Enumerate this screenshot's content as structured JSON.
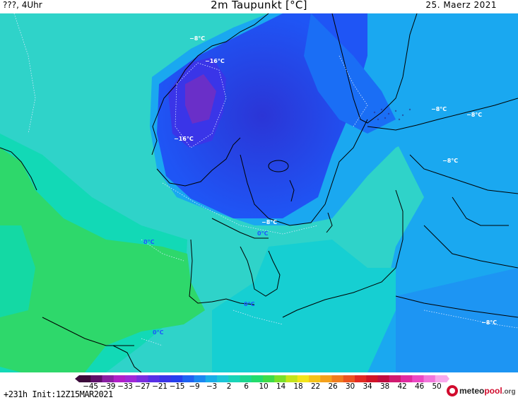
{
  "header": {
    "location": "???, 4Uhr",
    "title": "2m Taupunkt [°C]",
    "date": "25. Maerz 2021"
  },
  "map": {
    "isotherm_labels": [
      {
        "text": "-8°C",
        "style": "light"
      },
      {
        "text": "-16°C",
        "style": "light"
      },
      {
        "text": "-16°C",
        "style": "light"
      },
      {
        "text": "-8°C",
        "style": "light"
      },
      {
        "text": "-8°C",
        "style": "light"
      },
      {
        "text": "-8°C",
        "style": "light"
      },
      {
        "text": "-8°C",
        "style": "light"
      },
      {
        "text": "-8°C",
        "style": "light"
      },
      {
        "text": "0°C",
        "style": "dark"
      },
      {
        "text": "0°C",
        "style": "dark"
      },
      {
        "text": "0°C",
        "style": "dark"
      },
      {
        "text": "0°C",
        "style": "dark"
      }
    ],
    "colors": {
      "ocean": "#2fd3c9",
      "near_zero": "#12d9b6",
      "warm_land": "#2ed86b",
      "cold": "#1aa8f0",
      "very_cold": "#1f55f5",
      "deep_cold": "#2b35d6",
      "extreme_cold": "#6a2fc8",
      "coastline": "#000000"
    }
  },
  "colorbar": {
    "ticks": [
      "-45",
      "-39",
      "-33",
      "-27",
      "-21",
      "-15",
      "-9",
      "-3",
      "2",
      "6",
      "10",
      "14",
      "18",
      "22",
      "26",
      "30",
      "34",
      "38",
      "42",
      "46",
      "50"
    ],
    "colors": [
      "#3b0a3a",
      "#5e0f6a",
      "#8a1fa3",
      "#b020c8",
      "#a028d8",
      "#7a2ee0",
      "#5830e6",
      "#3a35e8",
      "#2540ee",
      "#1e62f2",
      "#1a88f2",
      "#19aee8",
      "#1cc6d8",
      "#18d4b8",
      "#1cd890",
      "#22dc6c",
      "#3edc48",
      "#7ae02a",
      "#c4e41c",
      "#f2e41c",
      "#f5c21a",
      "#f4a01c",
      "#f07c1e",
      "#ec5420",
      "#e22a22",
      "#d01428",
      "#c00c40",
      "#d01a70",
      "#e02aa0",
      "#ec48c4",
      "#f276dc",
      "#f8a8ec"
    ]
  },
  "footer": {
    "run_info": "+231h Init:12Z15MAR2021",
    "logo_part1": "meteo",
    "logo_part2": "pool",
    "logo_part3": ".org"
  }
}
